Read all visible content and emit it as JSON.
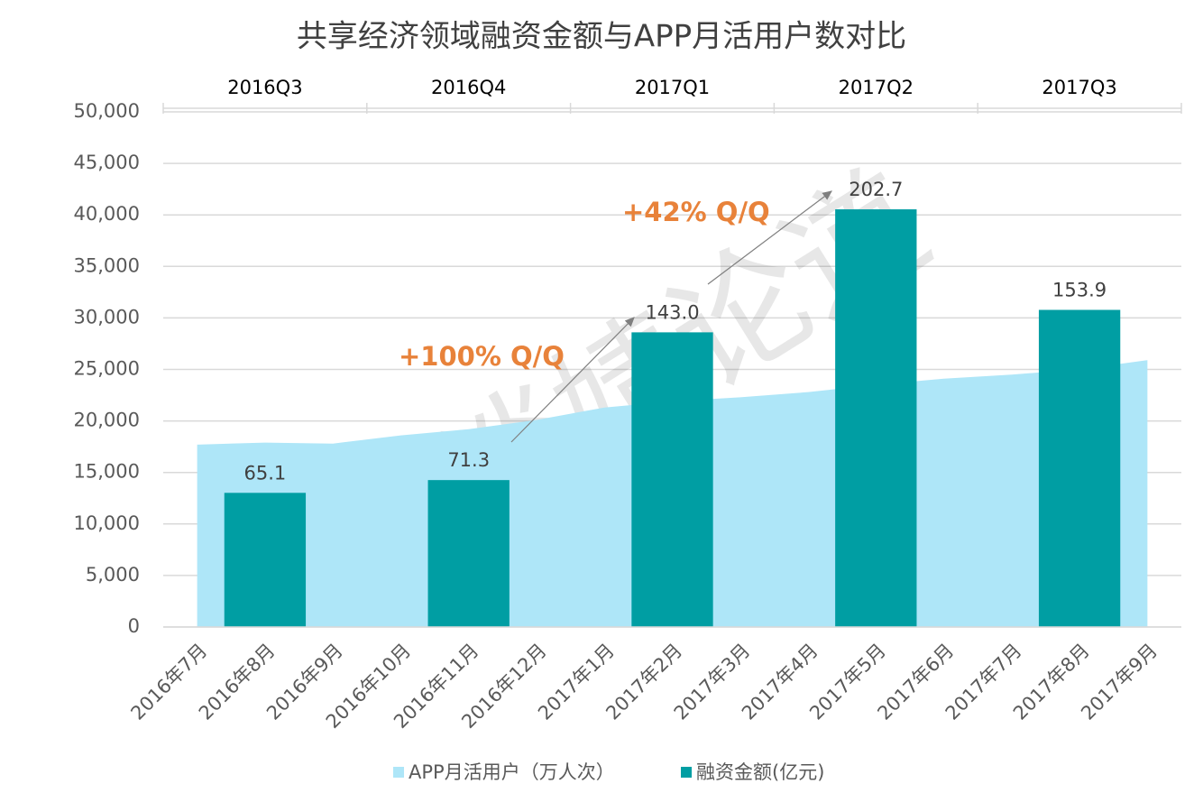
{
  "chart_data": {
    "type": "bar",
    "title": "共享经济领域融资金额与APP月活用户数对比",
    "watermark": "@谈婧论道",
    "annotations": [
      "+100% Q/Q",
      "+42% Q/Q"
    ],
    "quarters": [
      "2016Q3",
      "2016Q4",
      "2017Q1",
      "2017Q2",
      "2017Q3"
    ],
    "categories": [
      "2016年7月",
      "2016年8月",
      "2016年9月",
      "2016年10月",
      "2016年11月",
      "2016年12月",
      "2017年1月",
      "2017年2月",
      "2017年3月",
      "2017年4月",
      "2017年5月",
      "2017年6月",
      "2017年7月",
      "2017年8月",
      "2017年9月"
    ],
    "series": [
      {
        "name": "APP月活用户（万人次）",
        "type": "area",
        "color": "#aee6f8",
        "values": [
          17700,
          17900,
          17800,
          18600,
          19200,
          20100,
          21300,
          21900,
          22300,
          22800,
          23500,
          24100,
          24500,
          25000,
          25900
        ]
      },
      {
        "name": "融资金额(亿元)",
        "type": "bar",
        "axis": "y2",
        "color": "#009ea3",
        "values": [
          null,
          65.1,
          null,
          null,
          71.3,
          null,
          null,
          143.0,
          null,
          null,
          202.7,
          null,
          null,
          153.9,
          null
        ],
        "value_labels": [
          null,
          "65.1",
          null,
          null,
          "71.3",
          null,
          null,
          "143.0",
          null,
          null,
          "202.7",
          null,
          null,
          "153.9",
          null
        ]
      }
    ],
    "ylim": [
      0,
      50000
    ],
    "yticks": [
      0,
      {
        "value": 5000,
        "label": "5,000"
      },
      {
        "value": 10000,
        "label": "10,000"
      },
      {
        "value": 15000,
        "label": "15,000"
      },
      {
        "value": 20000,
        "label": "20,000"
      },
      {
        "value": 25000,
        "label": "25,000"
      },
      {
        "value": 30000,
        "label": "30,000"
      },
      {
        "value": 35000,
        "label": "35,000"
      },
      {
        "value": 40000,
        "label": "40,000"
      },
      {
        "value": 45000,
        "label": "45,000"
      },
      {
        "value": 50000,
        "label": "50,000"
      }
    ],
    "y2lim": [
      0,
      250
    ],
    "grid": true,
    "legend": "bottom"
  }
}
